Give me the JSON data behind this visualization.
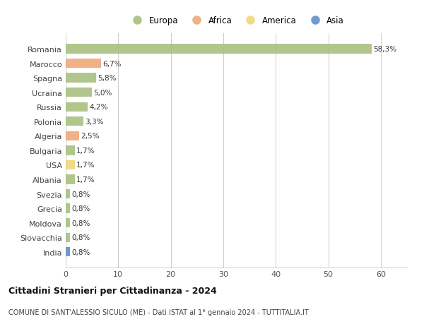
{
  "countries": [
    "Romania",
    "Marocco",
    "Spagna",
    "Ucraina",
    "Russia",
    "Polonia",
    "Algeria",
    "Bulgaria",
    "USA",
    "Albania",
    "Svezia",
    "Grecia",
    "Moldova",
    "Slovacchia",
    "India"
  ],
  "values": [
    58.3,
    6.7,
    5.8,
    5.0,
    4.2,
    3.3,
    2.5,
    1.7,
    1.7,
    1.7,
    0.8,
    0.8,
    0.8,
    0.8,
    0.8
  ],
  "labels": [
    "58,3%",
    "6,7%",
    "5,8%",
    "5,0%",
    "4,2%",
    "3,3%",
    "2,5%",
    "1,7%",
    "1,7%",
    "1,7%",
    "0,8%",
    "0,8%",
    "0,8%",
    "0,8%",
    "0,8%"
  ],
  "continents": [
    "Europa",
    "Africa",
    "Europa",
    "Europa",
    "Europa",
    "Europa",
    "Africa",
    "Europa",
    "America",
    "Europa",
    "Europa",
    "Europa",
    "Europa",
    "Europa",
    "Asia"
  ],
  "continent_colors": {
    "Europa": "#a8c080",
    "Africa": "#f0a878",
    "America": "#f0d878",
    "Asia": "#6090c8"
  },
  "legend_order": [
    "Europa",
    "Africa",
    "America",
    "Asia"
  ],
  "legend_colors": [
    "#a8c080",
    "#f0a878",
    "#f0d878",
    "#6090c8"
  ],
  "title": "Cittadini Stranieri per Cittadinanza - 2024",
  "subtitle": "COMUNE DI SANT'ALESSIO SICULO (ME) - Dati ISTAT al 1° gennaio 2024 - TUTTITALIA.IT",
  "xlim": [
    0,
    65
  ],
  "xticks": [
    0,
    10,
    20,
    30,
    40,
    50,
    60
  ],
  "background_color": "#ffffff",
  "grid_color": "#cccccc",
  "bar_height": 0.65
}
